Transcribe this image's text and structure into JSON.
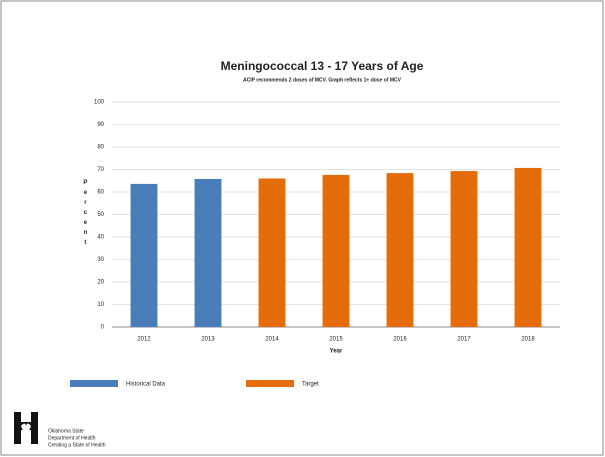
{
  "chart_data": {
    "type": "bar",
    "title": "Meningococcal 13 - 17 Years of Age",
    "subtitle": "ACIP recommends 2 doses of MCV. Graph reflects 1+ dose of MCV",
    "y_label": "Percent",
    "x_label": "Year",
    "categories": [
      "2012",
      "2013",
      "2014",
      "2015",
      "2016",
      "2017",
      "2018"
    ],
    "series": [
      {
        "name": "Historical Data",
        "color": "#4a7ebb",
        "values": [
          63.6,
          65.8,
          null,
          null,
          null,
          null,
          null
        ]
      },
      {
        "name": "Target",
        "color": "#e46c0a",
        "values": [
          null,
          null,
          66,
          67.6,
          68.4,
          69.3,
          70.7
        ]
      }
    ],
    "ylim": [
      0,
      100
    ],
    "yticks": [
      0,
      10,
      20,
      30,
      40,
      50,
      60,
      70,
      80,
      90,
      100
    ],
    "grid": true
  },
  "logo": {
    "lines": [
      "Oklahoma State",
      "Department of Health",
      "Creating a State of Health"
    ]
  }
}
